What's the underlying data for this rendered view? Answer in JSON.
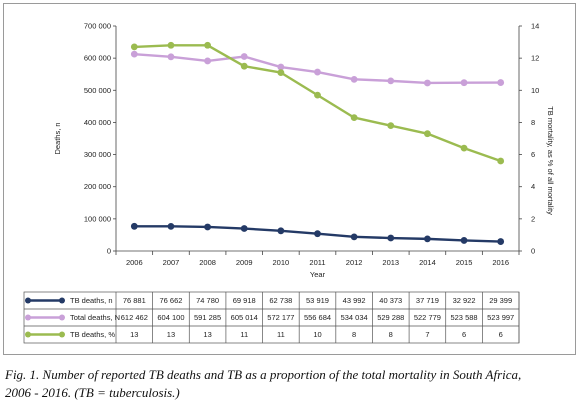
{
  "chart_data": {
    "type": "line",
    "x": [
      2006,
      2007,
      2008,
      2009,
      2010,
      2011,
      2012,
      2013,
      2014,
      2015,
      2016
    ],
    "xlabel": "Year",
    "ylabel_left": "Deaths, n",
    "ylabel_right": "TB mortality, as % of all mortality",
    "ylim_left": [
      0,
      700000
    ],
    "ylim_right": [
      0,
      14
    ],
    "yticks_left": [
      "0",
      "100 000",
      "200 000",
      "300 000",
      "400 000",
      "500 000",
      "600 000",
      "700 000"
    ],
    "yticks_right": [
      "0",
      "2",
      "4",
      "6",
      "8",
      "10",
      "12",
      "14"
    ],
    "series": [
      {
        "name": "TB deaths, n",
        "axis": "left",
        "color": "#243a66",
        "values": [
          76881,
          76662,
          74780,
          69918,
          62738,
          53919,
          43992,
          40373,
          37719,
          32922,
          29399
        ],
        "labels": [
          "76 881",
          "76 662",
          "74 780",
          "69 918",
          "62 738",
          "53 919",
          "43 992",
          "40 373",
          "37 719",
          "32 922",
          "29 399"
        ]
      },
      {
        "name": "Total deaths, N",
        "axis": "left",
        "color": "#c9a0d8",
        "values": [
          612462,
          604100,
          591285,
          605014,
          572177,
          556684,
          534034,
          529288,
          522779,
          523588,
          523997
        ],
        "labels": [
          "612 462",
          "604 100",
          "591 285",
          "605 014",
          "572 177",
          "556 684",
          "534 034",
          "529 288",
          "522 779",
          "523 588",
          "523 997"
        ]
      },
      {
        "name": "TB deaths, %",
        "axis": "right",
        "color": "#9bbb50",
        "values": [
          12.7,
          12.8,
          12.8,
          11.5,
          11.1,
          9.7,
          8.3,
          7.8,
          7.3,
          6.4,
          5.6
        ],
        "labels": [
          "13",
          "13",
          "13",
          "11",
          "11",
          "10",
          "8",
          "8",
          "7",
          "6",
          "6"
        ]
      }
    ],
    "legend": "table-below",
    "grid": false
  },
  "caption": {
    "line1": "Fig. 1. Number of reported TB deaths and TB as a proportion of the total mortality in South Africa,",
    "line2": "2006 - 2016. (TB = tuberculosis.)"
  }
}
